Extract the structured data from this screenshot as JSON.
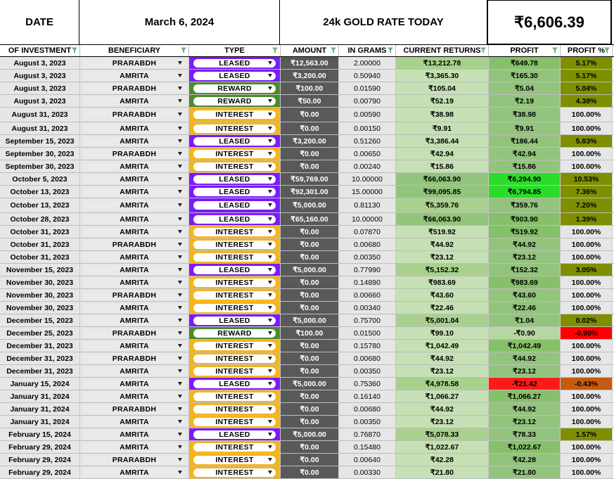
{
  "header": {
    "date_label": "DATE",
    "date_value": "March 6, 2024",
    "rate_label": "24k GOLD RATE TODAY",
    "rate_value": "₹6,606.39"
  },
  "columns": [
    "OF INVESTMENT",
    "BENEFICIARY",
    "TYPE",
    "AMOUNT",
    "IN GRAMS",
    "CURRENT RETURNS",
    "PROFIT",
    "PROFIT %"
  ],
  "type_colors": {
    "LEASED": "#7b19ff",
    "REWARD": "#4c8a2c",
    "INTEREST": "#f4b41c"
  },
  "rows": [
    {
      "date": "August 3, 2023",
      "ben": "PRARABDH",
      "type": "LEASED",
      "amount": "₹12,563.00",
      "grams": "2.00000",
      "returns": "₹13,212.78",
      "profit": "₹649.78",
      "pct": "5.17%"
    },
    {
      "date": "August 3, 2023",
      "ben": "AMRITA",
      "type": "LEASED",
      "amount": "₹3,200.00",
      "grams": "0.50940",
      "returns": "₹3,365.30",
      "profit": "₹165.30",
      "pct": "5.17%"
    },
    {
      "date": "August 3, 2023",
      "ben": "PRARABDH",
      "type": "REWARD",
      "amount": "₹100.00",
      "grams": "0.01590",
      "returns": "₹105.04",
      "profit": "₹5.04",
      "pct": "5.04%"
    },
    {
      "date": "August 3, 2023",
      "ben": "AMRITA",
      "type": "REWARD",
      "amount": "₹50.00",
      "grams": "0.00790",
      "returns": "₹52.19",
      "profit": "₹2.19",
      "pct": "4.38%"
    },
    {
      "date": "August 31, 2023",
      "ben": "PRARABDH",
      "type": "INTEREST",
      "amount": "₹0.00",
      "grams": "0.00590",
      "returns": "₹38.98",
      "profit": "₹38.98",
      "pct": "100.00%"
    },
    {
      "date": "August 31, 2023",
      "ben": "AMRITA",
      "type": "INTEREST",
      "amount": "₹0.00",
      "grams": "0.00150",
      "returns": "₹9.91",
      "profit": "₹9.91",
      "pct": "100.00%"
    },
    {
      "date": "September 15, 2023",
      "ben": "AMRITA",
      "type": "LEASED",
      "amount": "₹3,200.00",
      "grams": "0.51260",
      "returns": "₹3,386.44",
      "profit": "₹186.44",
      "pct": "5.83%"
    },
    {
      "date": "September 30, 2023",
      "ben": "PRARABDH",
      "type": "INTEREST",
      "amount": "₹0.00",
      "grams": "0.00650",
      "returns": "₹42.94",
      "profit": "₹42.94",
      "pct": "100.00%"
    },
    {
      "date": "September 30, 2023",
      "ben": "AMRITA",
      "type": "INTEREST",
      "amount": "₹0.00",
      "grams": "0.00240",
      "returns": "₹15.86",
      "profit": "₹15.86",
      "pct": "100.00%"
    },
    {
      "date": "October 5, 2023",
      "ben": "AMRITA",
      "type": "LEASED",
      "amount": "₹59,769.00",
      "grams": "10.00000",
      "returns": "₹66,063.90",
      "profit": "₹6,294.90",
      "pct": "10.53%"
    },
    {
      "date": "October 13, 2023",
      "ben": "AMRITA",
      "type": "LEASED",
      "amount": "₹92,301.00",
      "grams": "15.00000",
      "returns": "₹99,095.85",
      "profit": "₹6,794.85",
      "pct": "7.36%"
    },
    {
      "date": "October 13, 2023",
      "ben": "AMRITA",
      "type": "LEASED",
      "amount": "₹5,000.00",
      "grams": "0.81130",
      "returns": "₹5,359.76",
      "profit": "₹359.76",
      "pct": "7.20%"
    },
    {
      "date": "October 28, 2023",
      "ben": "AMRITA",
      "type": "LEASED",
      "amount": "₹65,160.00",
      "grams": "10.00000",
      "returns": "₹66,063.90",
      "profit": "₹903.90",
      "pct": "1.39%"
    },
    {
      "date": "October 31, 2023",
      "ben": "AMRITA",
      "type": "INTEREST",
      "amount": "₹0.00",
      "grams": "0.07870",
      "returns": "₹519.92",
      "profit": "₹519.92",
      "pct": "100.00%"
    },
    {
      "date": "October 31, 2023",
      "ben": "PRARABDH",
      "type": "INTEREST",
      "amount": "₹0.00",
      "grams": "0.00680",
      "returns": "₹44.92",
      "profit": "₹44.92",
      "pct": "100.00%"
    },
    {
      "date": "October 31, 2023",
      "ben": "AMRITA",
      "type": "INTEREST",
      "amount": "₹0.00",
      "grams": "0.00350",
      "returns": "₹23.12",
      "profit": "₹23.12",
      "pct": "100.00%"
    },
    {
      "date": "November 15, 2023",
      "ben": "AMRITA",
      "type": "LEASED",
      "amount": "₹5,000.00",
      "grams": "0.77990",
      "returns": "₹5,152.32",
      "profit": "₹152.32",
      "pct": "3.05%"
    },
    {
      "date": "November 30, 2023",
      "ben": "AMRITA",
      "type": "INTEREST",
      "amount": "₹0.00",
      "grams": "0.14890",
      "returns": "₹983.69",
      "profit": "₹983.69",
      "pct": "100.00%"
    },
    {
      "date": "November 30, 2023",
      "ben": "PRARABDH",
      "type": "INTEREST",
      "amount": "₹0.00",
      "grams": "0.00660",
      "returns": "₹43.60",
      "profit": "₹43.60",
      "pct": "100.00%"
    },
    {
      "date": "November 30, 2023",
      "ben": "AMRITA",
      "type": "INTEREST",
      "amount": "₹0.00",
      "grams": "0.00340",
      "returns": "₹22.46",
      "profit": "₹22.46",
      "pct": "100.00%"
    },
    {
      "date": "December 15, 2023",
      "ben": "AMRITA",
      "type": "LEASED",
      "amount": "₹5,000.00",
      "grams": "0.75700",
      "returns": "₹5,001.04",
      "profit": "₹1.04",
      "pct": "0.02%"
    },
    {
      "date": "December 25, 2023",
      "ben": "PRARABDH",
      "type": "REWARD",
      "amount": "₹100.00",
      "grams": "0.01500",
      "returns": "₹99.10",
      "profit": "-₹0.90",
      "pct": "-0.90%"
    },
    {
      "date": "December 31, 2023",
      "ben": "AMRITA",
      "type": "INTEREST",
      "amount": "₹0.00",
      "grams": "0.15780",
      "returns": "₹1,042.49",
      "profit": "₹1,042.49",
      "pct": "100.00%"
    },
    {
      "date": "December 31, 2023",
      "ben": "PRARABDH",
      "type": "INTEREST",
      "amount": "₹0.00",
      "grams": "0.00680",
      "returns": "₹44.92",
      "profit": "₹44.92",
      "pct": "100.00%"
    },
    {
      "date": "December 31, 2023",
      "ben": "AMRITA",
      "type": "INTEREST",
      "amount": "₹0.00",
      "grams": "0.00350",
      "returns": "₹23.12",
      "profit": "₹23.12",
      "pct": "100.00%"
    },
    {
      "date": "January 15, 2024",
      "ben": "AMRITA",
      "type": "LEASED",
      "amount": "₹5,000.00",
      "grams": "0.75360",
      "returns": "₹4,978.58",
      "profit": "-₹21.42",
      "pct": "-0.43%"
    },
    {
      "date": "January 31, 2024",
      "ben": "AMRITA",
      "type": "INTEREST",
      "amount": "₹0.00",
      "grams": "0.16140",
      "returns": "₹1,066.27",
      "profit": "₹1,066.27",
      "pct": "100.00%"
    },
    {
      "date": "January 31, 2024",
      "ben": "PRARABDH",
      "type": "INTEREST",
      "amount": "₹0.00",
      "grams": "0.00680",
      "returns": "₹44.92",
      "profit": "₹44.92",
      "pct": "100.00%"
    },
    {
      "date": "January 31, 2024",
      "ben": "AMRITA",
      "type": "INTEREST",
      "amount": "₹0.00",
      "grams": "0.00350",
      "returns": "₹23.12",
      "profit": "₹23.12",
      "pct": "100.00%"
    },
    {
      "date": "February 15, 2024",
      "ben": "AMRITA",
      "type": "LEASED",
      "amount": "₹5,000.00",
      "grams": "0.76870",
      "returns": "₹5,078.33",
      "profit": "₹78.33",
      "pct": "1.57%"
    },
    {
      "date": "February 29, 2024",
      "ben": "AMRITA",
      "type": "INTEREST",
      "amount": "₹0.00",
      "grams": "0.15480",
      "returns": "₹1,022.67",
      "profit": "₹1,022.67",
      "pct": "100.00%"
    },
    {
      "date": "February 29, 2024",
      "ben": "PRARABDH",
      "type": "INTEREST",
      "amount": "₹0.00",
      "grams": "0.00640",
      "returns": "₹42.28",
      "profit": "₹42.28",
      "pct": "100.00%"
    },
    {
      "date": "February 29, 2024",
      "ben": "AMRITA",
      "type": "INTEREST",
      "amount": "₹0.00",
      "grams": "0.00330",
      "returns": "₹21.80",
      "profit": "₹21.80",
      "pct": "100.00%"
    }
  ]
}
